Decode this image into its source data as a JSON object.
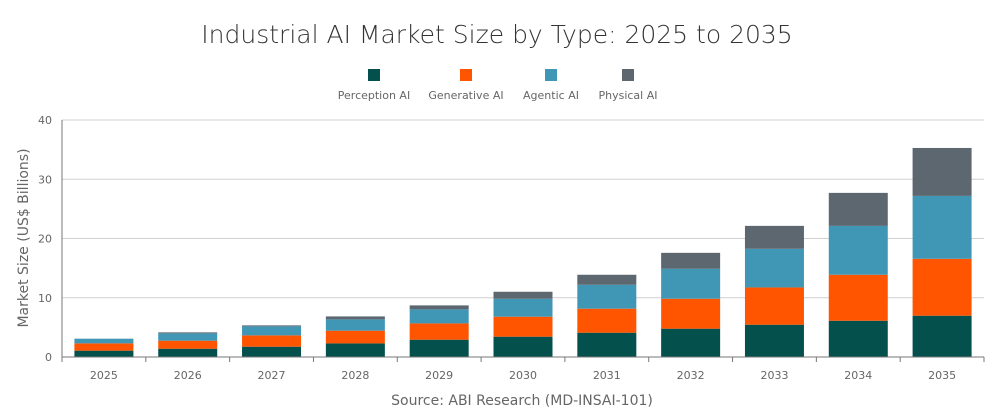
{
  "chart_data": {
    "type": "bar",
    "stacked": true,
    "title": "Industrial AI Market Size by Type: 2025 to 2035",
    "xlabel": "",
    "ylabel": "Market Size (US$ Billions)",
    "source": "Source: ABI Research (MD-INSAI-101)",
    "ylim": [
      0,
      40
    ],
    "yticks": [
      0,
      10,
      20,
      30,
      40
    ],
    "grid": true,
    "legend_position": "top",
    "categories": [
      "2025",
      "2026",
      "2027",
      "2028",
      "2029",
      "2030",
      "2031",
      "2032",
      "2033",
      "2034",
      "2035"
    ],
    "series": [
      {
        "name": "Perception AI",
        "color": "#03504C",
        "values": [
          1.07,
          1.4,
          1.74,
          2.3,
          2.92,
          3.43,
          4.1,
          4.78,
          5.45,
          6.12,
          6.97
        ]
      },
      {
        "name": "Generative AI",
        "color": "#FF5500",
        "values": [
          1.23,
          1.35,
          1.91,
          2.14,
          2.75,
          3.37,
          4.05,
          5.05,
          6.29,
          7.76,
          9.6
        ]
      },
      {
        "name": "Agentic AI",
        "color": "#4096B5",
        "values": [
          0.79,
          1.24,
          1.52,
          1.91,
          2.37,
          3.03,
          4.04,
          5.06,
          6.52,
          8.25,
          10.62
        ]
      },
      {
        "name": "Physical AI",
        "color": "#5D6770",
        "values": [
          0.0,
          0.17,
          0.17,
          0.5,
          0.67,
          1.18,
          1.69,
          2.69,
          3.87,
          5.57,
          8.09
        ]
      }
    ]
  }
}
